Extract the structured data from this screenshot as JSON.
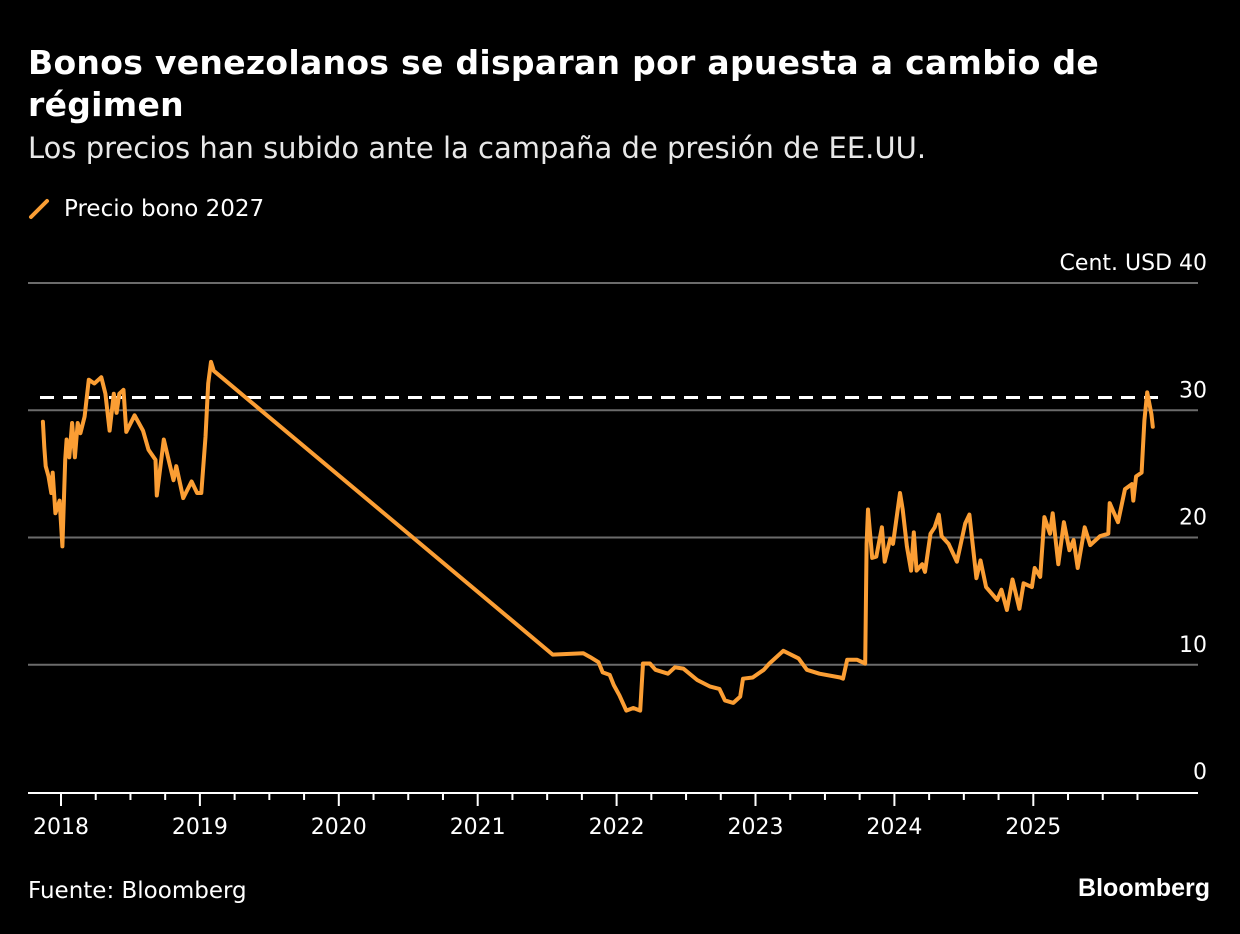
{
  "header": {
    "title": "Bonos venezolanos se disparan por apuesta a cambio de régimen",
    "subtitle": "Los precios han subido ante la campaña de presión de EE.UU."
  },
  "footer": {
    "source": "Fuente: Bloomberg",
    "logo": "Bloomberg"
  },
  "chart_data": {
    "type": "line",
    "title": "Bonos venezolanos se disparan por apuesta a cambio de régimen",
    "subtitle": "Los precios han subido ante la campaña de presión de EE.UU.",
    "ylabel": "Cent. USD",
    "ylim": [
      0,
      40
    ],
    "yticks": [
      0,
      10,
      20,
      30,
      40
    ],
    "ytick_labels": [
      "0",
      "10",
      "20",
      "30",
      "Cent. USD 40"
    ],
    "xlim": [
      2017.77,
      2026.2
    ],
    "xticks": [
      "2018",
      "2019",
      "2020",
      "2021",
      "2022",
      "2023",
      "2024",
      "2025"
    ],
    "grid": true,
    "legend": "top-left",
    "reference_line": {
      "value": 31.0,
      "style": "dashed",
      "color": "#ffffff"
    },
    "colors": {
      "series": "#fb9e34",
      "grid": "#6b6b6b",
      "background": "#000000"
    },
    "series": [
      {
        "name": "Precio bono 2027",
        "points": [
          [
            2017.87,
            29.1
          ],
          [
            2017.88,
            27.1
          ],
          [
            2017.89,
            25.6
          ],
          [
            2017.91,
            24.8
          ],
          [
            2017.93,
            23.5
          ],
          [
            2017.94,
            25.1
          ],
          [
            2017.96,
            21.9
          ],
          [
            2017.99,
            22.9
          ],
          [
            2018.01,
            19.3
          ],
          [
            2018.03,
            26.1
          ],
          [
            2018.04,
            27.7
          ],
          [
            2018.06,
            26.3
          ],
          [
            2018.08,
            29.0
          ],
          [
            2018.1,
            26.3
          ],
          [
            2018.12,
            29.0
          ],
          [
            2018.14,
            28.2
          ],
          [
            2018.17,
            29.5
          ],
          [
            2018.2,
            32.4
          ],
          [
            2018.24,
            32.1
          ],
          [
            2018.29,
            32.6
          ],
          [
            2018.32,
            31.3
          ],
          [
            2018.35,
            28.4
          ],
          [
            2018.38,
            31.3
          ],
          [
            2018.4,
            29.8
          ],
          [
            2018.42,
            31.3
          ],
          [
            2018.45,
            31.6
          ],
          [
            2018.47,
            28.3
          ],
          [
            2018.53,
            29.6
          ],
          [
            2018.59,
            28.4
          ],
          [
            2018.63,
            26.9
          ],
          [
            2018.68,
            26.1
          ],
          [
            2018.69,
            23.3
          ],
          [
            2018.74,
            27.7
          ],
          [
            2018.77,
            26.3
          ],
          [
            2018.81,
            24.5
          ],
          [
            2018.83,
            25.6
          ],
          [
            2018.88,
            23.1
          ],
          [
            2018.94,
            24.4
          ],
          [
            2018.98,
            23.5
          ],
          [
            2019.01,
            23.5
          ],
          [
            2019.04,
            27.9
          ],
          [
            2019.06,
            32.1
          ],
          [
            2019.08,
            33.8
          ],
          [
            2019.1,
            33.1
          ],
          [
            2021.54,
            10.8
          ],
          [
            2021.76,
            10.9
          ],
          [
            2021.81,
            10.6
          ],
          [
            2021.87,
            10.2
          ],
          [
            2021.9,
            9.4
          ],
          [
            2021.95,
            9.2
          ],
          [
            2021.98,
            8.4
          ],
          [
            2022.02,
            7.6
          ],
          [
            2022.07,
            6.4
          ],
          [
            2022.12,
            6.6
          ],
          [
            2022.17,
            6.4
          ],
          [
            2022.19,
            10.1
          ],
          [
            2022.24,
            10.1
          ],
          [
            2022.28,
            9.6
          ],
          [
            2022.37,
            9.3
          ],
          [
            2022.42,
            9.8
          ],
          [
            2022.48,
            9.7
          ],
          [
            2022.58,
            8.8
          ],
          [
            2022.67,
            8.3
          ],
          [
            2022.74,
            8.1
          ],
          [
            2022.78,
            7.2
          ],
          [
            2022.84,
            7.0
          ],
          [
            2022.89,
            7.5
          ],
          [
            2022.91,
            8.9
          ],
          [
            2022.98,
            9.0
          ],
          [
            2023.06,
            9.6
          ],
          [
            2023.1,
            10.1
          ],
          [
            2023.2,
            11.1
          ],
          [
            2023.31,
            10.5
          ],
          [
            2023.37,
            9.6
          ],
          [
            2023.46,
            9.3
          ],
          [
            2023.61,
            9.0
          ],
          [
            2023.63,
            8.9
          ],
          [
            2023.66,
            10.4
          ],
          [
            2023.73,
            10.4
          ],
          [
            2023.79,
            10.1
          ],
          [
            2023.8,
            19.5
          ],
          [
            2023.81,
            22.2
          ],
          [
            2023.84,
            18.4
          ],
          [
            2023.87,
            18.5
          ],
          [
            2023.91,
            20.8
          ],
          [
            2023.93,
            18.1
          ],
          [
            2023.97,
            19.9
          ],
          [
            2023.99,
            19.5
          ],
          [
            2024.04,
            23.5
          ],
          [
            2024.06,
            22.2
          ],
          [
            2024.09,
            19.3
          ],
          [
            2024.12,
            17.4
          ],
          [
            2024.14,
            20.4
          ],
          [
            2024.16,
            17.4
          ],
          [
            2024.2,
            17.9
          ],
          [
            2024.22,
            17.3
          ],
          [
            2024.26,
            20.3
          ],
          [
            2024.29,
            20.8
          ],
          [
            2024.32,
            21.8
          ],
          [
            2024.34,
            20.1
          ],
          [
            2024.39,
            19.5
          ],
          [
            2024.45,
            18.1
          ],
          [
            2024.51,
            21.1
          ],
          [
            2024.54,
            21.8
          ],
          [
            2024.59,
            16.8
          ],
          [
            2024.62,
            18.2
          ],
          [
            2024.66,
            16.1
          ],
          [
            2024.74,
            15.1
          ],
          [
            2024.77,
            15.9
          ],
          [
            2024.81,
            14.3
          ],
          [
            2024.85,
            16.7
          ],
          [
            2024.9,
            14.4
          ],
          [
            2024.93,
            16.4
          ],
          [
            2024.99,
            16.1
          ],
          [
            2025.01,
            17.6
          ],
          [
            2025.05,
            16.9
          ],
          [
            2025.08,
            21.6
          ],
          [
            2025.12,
            20.3
          ],
          [
            2025.14,
            21.9
          ],
          [
            2025.18,
            17.9
          ],
          [
            2025.22,
            21.2
          ],
          [
            2025.26,
            19.0
          ],
          [
            2025.29,
            19.8
          ],
          [
            2025.32,
            17.6
          ],
          [
            2025.37,
            20.8
          ],
          [
            2025.41,
            19.4
          ],
          [
            2025.48,
            20.1
          ],
          [
            2025.54,
            20.3
          ],
          [
            2025.55,
            22.7
          ],
          [
            2025.61,
            21.2
          ],
          [
            2025.66,
            23.8
          ],
          [
            2025.71,
            24.2
          ],
          [
            2025.72,
            22.9
          ],
          [
            2025.74,
            24.8
          ],
          [
            2025.78,
            25.1
          ],
          [
            2025.8,
            29.2
          ],
          [
            2025.82,
            31.4
          ],
          [
            2025.85,
            29.7
          ],
          [
            2025.86,
            28.7
          ]
        ]
      }
    ]
  }
}
